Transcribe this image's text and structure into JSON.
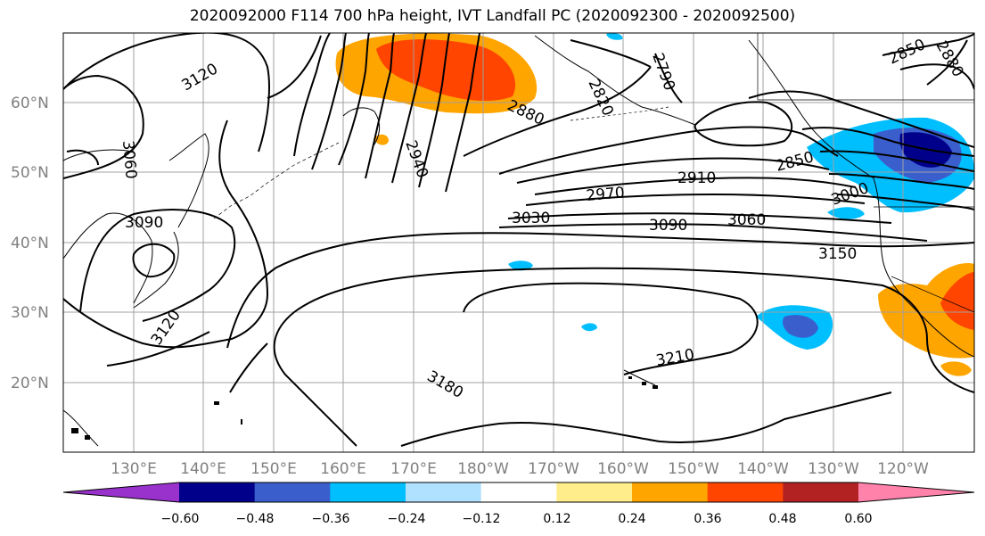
{
  "figure": {
    "title": "2020092000 F114 700 hPa height, IVT Landfall PC (2020092300 - 2020092500)"
  },
  "axes": {
    "lat_labels": [
      "60°N",
      "50°N",
      "40°N",
      "30°N",
      "20°N"
    ],
    "lon_labels": [
      "130°E",
      "140°E",
      "150°E",
      "160°E",
      "170°E",
      "180°W",
      "170°W",
      "160°W",
      "150°W",
      "140°W",
      "130°W",
      "120°W"
    ]
  },
  "contour_labels": [
    "3120",
    "3060",
    "3090",
    "3120",
    "2940",
    "2880",
    "2820",
    "2790",
    "2850",
    "2910",
    "2970",
    "3030",
    "3090",
    "3060",
    "3000",
    "3150",
    "3210",
    "3180",
    "2850",
    "2880"
  ],
  "colorbar": {
    "tick_labels": [
      "−0.60",
      "−0.48",
      "−0.36",
      "−0.24",
      "−0.12",
      "0.12",
      "0.24",
      "0.36",
      "0.48",
      "0.60"
    ],
    "colors": [
      "#9932cc",
      "#00008b",
      "#3a5fcd",
      "#00bfff",
      "#b0e2ff",
      "#ffffff",
      "#ffec8b",
      "#ffa500",
      "#ff4500",
      "#b22222",
      "#ff82ab"
    ]
  }
}
